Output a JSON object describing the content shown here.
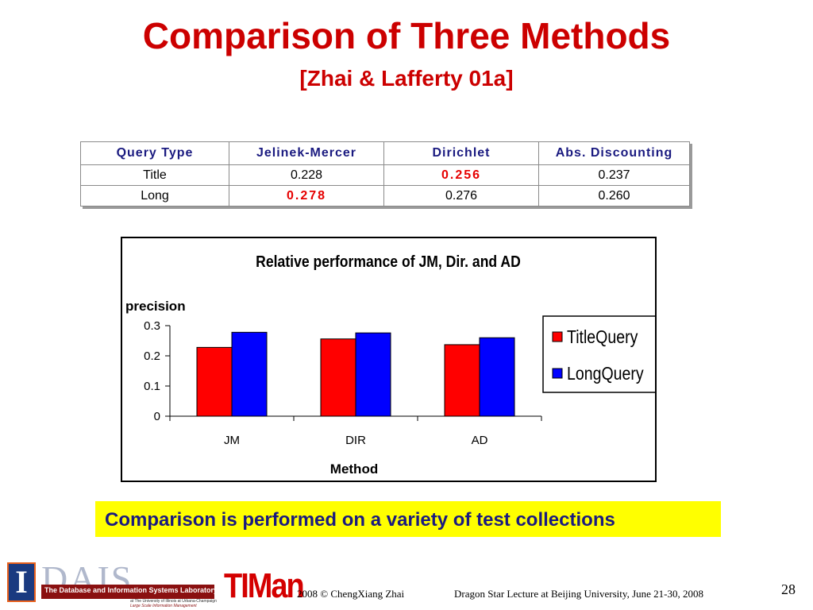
{
  "slide": {
    "title": "Comparison of Three Methods",
    "subtitle": "[Zhai & Lafferty 01a]",
    "note": "Comparison is performed on a variety of test collections",
    "page_number": "28"
  },
  "table": {
    "headers": [
      "Query Type",
      "Jelinek-Mercer",
      "Dirichlet",
      "Abs. Discounting"
    ],
    "rows": [
      {
        "cells": [
          "Title",
          "0.228",
          "0.256",
          "0.237"
        ],
        "best_index": 2
      },
      {
        "cells": [
          "Long",
          "0.278",
          "0.276",
          "0.260"
        ],
        "best_index": 1
      }
    ],
    "best_color": "#e60000"
  },
  "chart_data": {
    "type": "bar",
    "title": "Relative performance of JM, Dir. and AD",
    "xlabel": "Method",
    "ylabel": "precision",
    "categories": [
      "JM",
      "DIR",
      "AD"
    ],
    "series": [
      {
        "name": "TitleQuery",
        "values": [
          0.228,
          0.256,
          0.237
        ],
        "color": "#ff0000"
      },
      {
        "name": "LongQuery",
        "values": [
          0.278,
          0.276,
          0.26
        ],
        "color": "#0000ff"
      }
    ],
    "ylim": [
      0,
      0.3
    ],
    "yticks": [
      "0",
      "0.1",
      "0.2",
      "0.3"
    ],
    "grid": false,
    "legend_position": "right"
  },
  "footer": {
    "university_icon": "illinois-i-logo",
    "lab_logo_text": "DAIS",
    "lab_name": "The Database and Information Systems Laboratory",
    "lab_sub1": "at The University of Illinois at Urbana-Champaign",
    "lab_sub2": "Large Scale Information Management",
    "timan_logo": "TIMan",
    "copyright": "2008  © ChengXiang Zhai",
    "lecture": "Dragon Star Lecture at Beijing University, June 21-30, 2008"
  }
}
